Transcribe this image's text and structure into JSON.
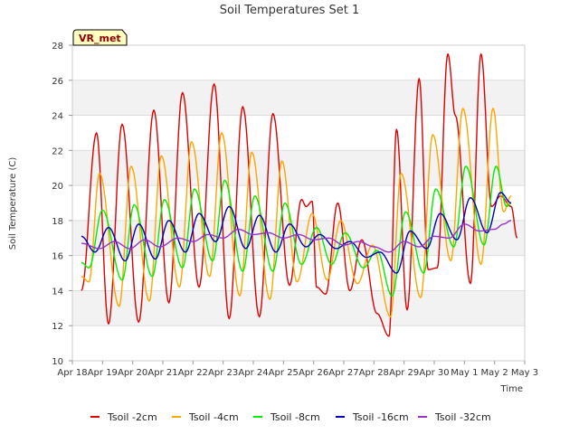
{
  "chart_data": {
    "type": "line",
    "title": "Soil Temperatures Set 1",
    "xlabel": "Time",
    "ylabel": "Soil Temperature (C)",
    "badge": "VR_met",
    "x_tick_labels": [
      "Apr 18",
      "Apr 19",
      "Apr 20",
      "Apr 21",
      "Apr 22",
      "Apr 23",
      "Apr 24",
      "Apr 25",
      "Apr 26",
      "Apr 27",
      "Apr 28",
      "Apr 29",
      "Apr 30",
      "May 1",
      "May 2",
      "May 3"
    ],
    "y_ticks": [
      10,
      12,
      14,
      16,
      18,
      20,
      22,
      24,
      26,
      28
    ],
    "xlim": [
      0,
      15
    ],
    "ylim": [
      10,
      28
    ],
    "grid": true,
    "legend_position": "bottom",
    "x_unit": "days since Apr 18",
    "series": [
      {
        "name": "Tsoil -2cm",
        "color": "#dd0000",
        "x": [
          0.3,
          0.8,
          1.2,
          1.65,
          2.2,
          2.7,
          3.2,
          3.65,
          4.2,
          4.7,
          5.2,
          5.65,
          6.2,
          6.65,
          7.2,
          7.6,
          7.75,
          7.95,
          8.1,
          8.4,
          8.8,
          9.2,
          9.6,
          10.1,
          10.5,
          10.75,
          11.1,
          11.5,
          11.8,
          12.1,
          12.45,
          12.7,
          13.2,
          13.55,
          13.9,
          14.2,
          14.55,
          14.75
        ],
        "y": [
          14.0,
          23.0,
          12.1,
          23.5,
          12.2,
          24.3,
          13.3,
          25.3,
          14.2,
          25.8,
          12.4,
          24.5,
          12.5,
          24.1,
          14.3,
          19.2,
          18.8,
          19.1,
          14.2,
          13.8,
          19.0,
          14.0,
          16.9,
          12.7,
          11.4,
          23.2,
          12.9,
          26.1,
          15.2,
          15.3,
          27.5,
          24.0,
          14.4,
          27.5,
          18.8,
          19.4,
          18.8,
          17.0
        ]
      },
      {
        "name": "Tsoil -4cm",
        "color": "#ffa500",
        "x": [
          0.3,
          0.55,
          0.9,
          1.55,
          1.95,
          2.55,
          2.95,
          3.55,
          3.95,
          4.55,
          4.95,
          5.55,
          5.95,
          6.55,
          6.95,
          7.45,
          7.95,
          8.45,
          8.9,
          9.45,
          9.95,
          10.55,
          10.9,
          11.55,
          11.95,
          12.55,
          12.95,
          13.55,
          13.95,
          14.3,
          14.55
        ],
        "y": [
          14.8,
          14.5,
          20.7,
          13.1,
          21.1,
          13.4,
          21.7,
          14.2,
          22.5,
          14.8,
          23.0,
          13.7,
          21.9,
          13.5,
          21.4,
          14.5,
          18.4,
          14.6,
          18.0,
          14.4,
          16.6,
          12.5,
          20.7,
          13.6,
          22.9,
          15.7,
          24.4,
          15.5,
          24.4,
          18.5,
          19.4
        ]
      },
      {
        "name": "Tsoil -8cm",
        "color": "#00ee00",
        "x": [
          0.3,
          0.55,
          1.0,
          1.65,
          2.05,
          2.65,
          3.05,
          3.65,
          4.05,
          4.65,
          5.05,
          5.65,
          6.05,
          6.65,
          7.05,
          7.6,
          8.1,
          8.6,
          9.05,
          9.65,
          10.1,
          10.6,
          11.05,
          11.65,
          12.05,
          12.65,
          13.05,
          13.65,
          14.05,
          14.4,
          14.55
        ],
        "y": [
          15.6,
          15.3,
          18.6,
          14.6,
          18.9,
          14.8,
          19.2,
          15.3,
          19.8,
          15.7,
          20.3,
          15.1,
          19.4,
          15.1,
          19.0,
          15.5,
          17.6,
          15.5,
          17.3,
          15.3,
          16.3,
          13.7,
          18.5,
          15.0,
          19.8,
          16.5,
          21.1,
          16.6,
          21.1,
          18.8,
          19.0
        ]
      },
      {
        "name": "Tsoil -16cm",
        "color": "#0000bb",
        "x": [
          0.3,
          0.75,
          1.2,
          1.75,
          2.2,
          2.75,
          3.2,
          3.75,
          4.2,
          4.75,
          5.2,
          5.75,
          6.2,
          6.75,
          7.2,
          7.75,
          8.2,
          8.75,
          9.2,
          9.75,
          10.2,
          10.75,
          11.2,
          11.75,
          12.2,
          12.75,
          13.2,
          13.75,
          14.2,
          14.55
        ],
        "y": [
          17.1,
          16.2,
          17.6,
          15.7,
          17.8,
          15.8,
          18.0,
          16.2,
          18.4,
          16.8,
          18.8,
          16.4,
          18.3,
          16.2,
          17.8,
          16.5,
          17.2,
          16.4,
          16.8,
          15.9,
          16.2,
          15.0,
          17.4,
          16.4,
          18.4,
          16.9,
          19.3,
          17.3,
          19.6,
          19.0
        ]
      },
      {
        "name": "Tsoil -32cm",
        "color": "#9932cc",
        "x": [
          0.3,
          0.9,
          1.4,
          1.9,
          2.4,
          2.9,
          3.5,
          4.0,
          4.5,
          5.0,
          5.5,
          6.0,
          6.5,
          7.0,
          7.5,
          8.0,
          8.5,
          9.0,
          9.5,
          10.0,
          10.5,
          11.0,
          11.5,
          12.0,
          12.5,
          13.0,
          13.5,
          14.0,
          14.3,
          14.55
        ],
        "y": [
          16.7,
          16.4,
          16.8,
          16.4,
          16.9,
          16.5,
          17.0,
          16.8,
          17.2,
          17.0,
          17.5,
          17.2,
          17.3,
          17.0,
          17.2,
          16.9,
          17.0,
          16.6,
          16.8,
          16.5,
          16.2,
          16.8,
          16.5,
          17.1,
          17.0,
          17.8,
          17.4,
          17.5,
          17.8,
          18.0
        ]
      }
    ]
  }
}
